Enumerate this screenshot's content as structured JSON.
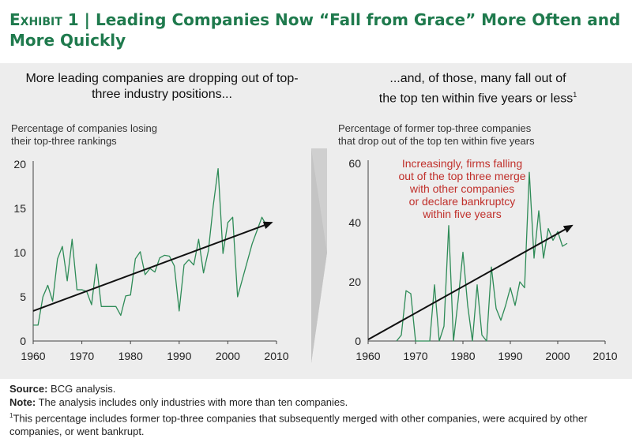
{
  "title": {
    "exhibit": "Exhibit 1",
    "separator": "|",
    "text": "Leading Companies Now “Fall from Grace” More Often and More Quickly"
  },
  "left": {
    "subhead": "More leading companies are dropping out of top-three industry positions...",
    "ylabel_line1": "Percentage of companies losing",
    "ylabel_line2": "their top-three rankings"
  },
  "right": {
    "subhead_line1": "...and, of those, many fall out of",
    "subhead_line2": "the top ten within five years or less",
    "subhead_sup": "1",
    "ylabel_line1": "Percentage of former top-three companies",
    "ylabel_line2": "that drop out of the top ten within five years",
    "annotation": [
      "Increasingly, firms falling",
      "out of the top three merge",
      "with other companies",
      "or declare bankruptcy",
      "within five years"
    ]
  },
  "colors": {
    "title_green": "#1f7a4d",
    "series": "#2e8b57",
    "trend": "#111111",
    "annotation": "#c0302b",
    "panel": "#ededed",
    "arrow": "#cfcfcf"
  },
  "footer": {
    "source_label": "Source:",
    "source_text": "BCG analysis.",
    "note_label": "Note:",
    "note_text": "The analysis includes only industries with more than ten companies.",
    "footnote_mark": "1",
    "footnote_text": "This percentage includes former top-three companies that subsequently merged with other companies, were acquired by other companies, or went bankrupt."
  },
  "chart_data": [
    {
      "type": "line",
      "xlim": [
        1960,
        2010
      ],
      "ylim": [
        0,
        20
      ],
      "xticks": [
        1960,
        1970,
        1980,
        1990,
        2000,
        2010
      ],
      "yticks": [
        0,
        5,
        10,
        15,
        20
      ],
      "x": [
        1960,
        1961,
        1962,
        1963,
        1964,
        1965,
        1966,
        1967,
        1968,
        1969,
        1970,
        1971,
        1972,
        1973,
        1974,
        1975,
        1976,
        1977,
        1978,
        1979,
        1980,
        1981,
        1982,
        1983,
        1984,
        1985,
        1986,
        1987,
        1988,
        1989,
        1990,
        1991,
        1992,
        1993,
        1994,
        1995,
        1996,
        1997,
        1998,
        1999,
        2000,
        2001,
        2002,
        2003,
        2004,
        2005,
        2006,
        2007,
        2008
      ],
      "values": [
        1.8,
        1.8,
        5.0,
        6.3,
        4.5,
        9.3,
        10.7,
        6.8,
        11.5,
        5.8,
        5.8,
        5.6,
        4.1,
        8.7,
        3.9,
        3.9,
        3.9,
        3.9,
        2.9,
        5.1,
        5.2,
        9.3,
        10.1,
        7.5,
        8.2,
        7.8,
        9.4,
        9.7,
        9.6,
        8.5,
        3.4,
        8.6,
        9.2,
        8.6,
        11.5,
        7.7,
        10.2,
        15.3,
        19.5,
        9.9,
        13.4,
        14.0,
        5.0,
        7.0,
        9.0,
        11.0,
        12.5,
        14.0,
        13.0
      ],
      "trend": {
        "x": [
          1960,
          2009
        ],
        "y": [
          3.4,
          13.4
        ]
      }
    },
    {
      "type": "line",
      "xlim": [
        1960,
        2010
      ],
      "ylim": [
        0,
        60
      ],
      "xticks": [
        1960,
        1970,
        1980,
        1990,
        2000,
        2010
      ],
      "yticks": [
        0,
        20,
        40,
        60
      ],
      "x": [
        1966,
        1967,
        1968,
        1969,
        1970,
        1971,
        1972,
        1973,
        1974,
        1975,
        1976,
        1977,
        1978,
        1979,
        1980,
        1981,
        1982,
        1983,
        1984,
        1985,
        1986,
        1987,
        1988,
        1989,
        1990,
        1991,
        1992,
        1993,
        1994,
        1995,
        1996,
        1997,
        1998,
        1999,
        2000,
        2001,
        2002
      ],
      "values": [
        0,
        2,
        17,
        16,
        0,
        0,
        0,
        0,
        19,
        0,
        5,
        39,
        0,
        14,
        30,
        12,
        0,
        19,
        2,
        0,
        25,
        11,
        7,
        12,
        18,
        12,
        20,
        18,
        57,
        28,
        44,
        28,
        38,
        34,
        37,
        32,
        33
      ],
      "trend": {
        "x": [
          1960,
          2003
        ],
        "y": [
          0.5,
          39
        ]
      }
    }
  ]
}
